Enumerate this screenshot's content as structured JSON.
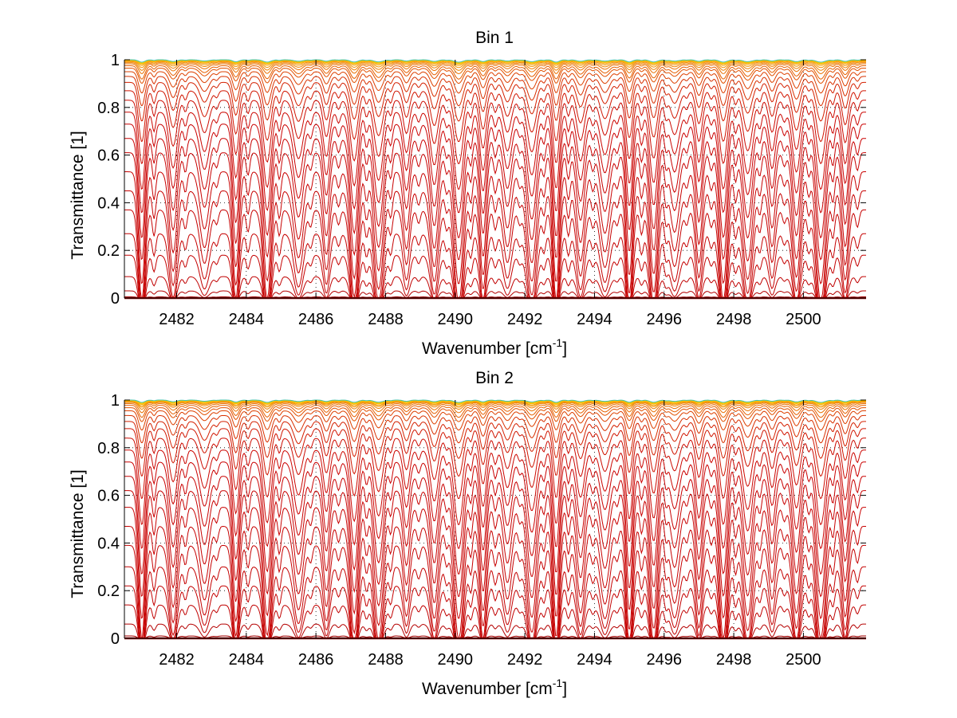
{
  "chart_data": [
    {
      "type": "line",
      "title": "Bin 1",
      "xlabel": "Wavenumber [cm",
      "xlabel_sup": "-1",
      "xlabel_tail": "]",
      "ylabel": "Transmittance [1]",
      "xlim": [
        2480.5,
        2501.8
      ],
      "ylim": [
        0,
        1
      ],
      "xticks": [
        "2482",
        "2484",
        "2486",
        "2488",
        "2490",
        "2492",
        "2494",
        "2496",
        "2498",
        "2500"
      ],
      "yticks": [
        "0",
        "0.2",
        "0.4",
        "0.6",
        "0.8",
        "1"
      ],
      "grid": "dotted",
      "line_centers": [
        2481.0,
        2481.9,
        2482.8,
        2483.7,
        2484.6,
        2485.5,
        2486.3,
        2487.1,
        2487.8,
        2488.6,
        2489.4,
        2490.1,
        2490.8,
        2491.5,
        2492.2,
        2492.9,
        2493.6,
        2494.3,
        2495.0,
        2495.7,
        2496.3,
        2497.0,
        2497.7,
        2498.4,
        2499.1,
        2499.8,
        2500.5,
        2501.2
      ],
      "series_baselines": [
        0.0,
        0.005,
        0.03,
        0.09,
        0.18,
        0.27,
        0.37,
        0.45,
        0.53,
        0.61,
        0.67,
        0.73,
        0.78,
        0.83,
        0.87,
        0.905,
        0.93,
        0.95,
        0.965,
        0.975,
        0.983,
        0.988,
        0.992,
        0.995,
        0.997,
        0.998,
        0.999,
        1.0
      ],
      "series_colors": [
        "#8b0000",
        "#a00000",
        "#b50000",
        "#c00000",
        "#c40000",
        "#c50000",
        "#c60000",
        "#c70000",
        "#c80000",
        "#c80000",
        "#c90000",
        "#ca0000",
        "#cb0500",
        "#cc0a00",
        "#d01500",
        "#d42000",
        "#d83000",
        "#dd4000",
        "#e25000",
        "#e66000",
        "#ea7000",
        "#ee8000",
        "#f29000",
        "#f5a000",
        "#f8b000",
        "#fac000",
        "#fcd000",
        "#40c0b0"
      ]
    },
    {
      "type": "line",
      "title": "Bin 2",
      "xlabel": "Wavenumber [cm",
      "xlabel_sup": "-1",
      "xlabel_tail": "]",
      "ylabel": "Transmittance [1]",
      "xlim": [
        2480.5,
        2501.8
      ],
      "ylim": [
        0,
        1
      ],
      "xticks": [
        "2482",
        "2484",
        "2486",
        "2488",
        "2490",
        "2492",
        "2494",
        "2496",
        "2498",
        "2500"
      ],
      "yticks": [
        "0",
        "0.2",
        "0.4",
        "0.6",
        "0.8",
        "1"
      ],
      "grid": "dotted",
      "line_centers": [
        2481.0,
        2481.9,
        2482.8,
        2483.7,
        2484.6,
        2485.5,
        2486.3,
        2487.1,
        2487.8,
        2488.6,
        2489.4,
        2490.1,
        2490.8,
        2491.5,
        2492.2,
        2492.9,
        2493.6,
        2494.3,
        2495.0,
        2495.7,
        2496.3,
        2497.0,
        2497.7,
        2498.4,
        2499.1,
        2499.8,
        2500.5,
        2501.2
      ],
      "series_baselines": [
        0.0,
        0.01,
        0.06,
        0.14,
        0.22,
        0.3,
        0.39,
        0.47,
        0.55,
        0.62,
        0.68,
        0.74,
        0.79,
        0.84,
        0.88,
        0.91,
        0.935,
        0.955,
        0.968,
        0.978,
        0.985,
        0.99,
        0.993,
        0.995,
        0.997,
        0.998,
        0.999,
        1.0
      ],
      "series_colors": [
        "#8b0000",
        "#a00000",
        "#b50000",
        "#c00000",
        "#c40000",
        "#c50000",
        "#c60000",
        "#c70000",
        "#c80000",
        "#c80000",
        "#c90000",
        "#ca0000",
        "#cb0500",
        "#cc0a00",
        "#d01500",
        "#d42000",
        "#d83000",
        "#dd4000",
        "#e25000",
        "#e66000",
        "#ea7000",
        "#ee8000",
        "#f29000",
        "#f5a000",
        "#f8b000",
        "#fac000",
        "#fcd000",
        "#40c0b0"
      ]
    }
  ]
}
